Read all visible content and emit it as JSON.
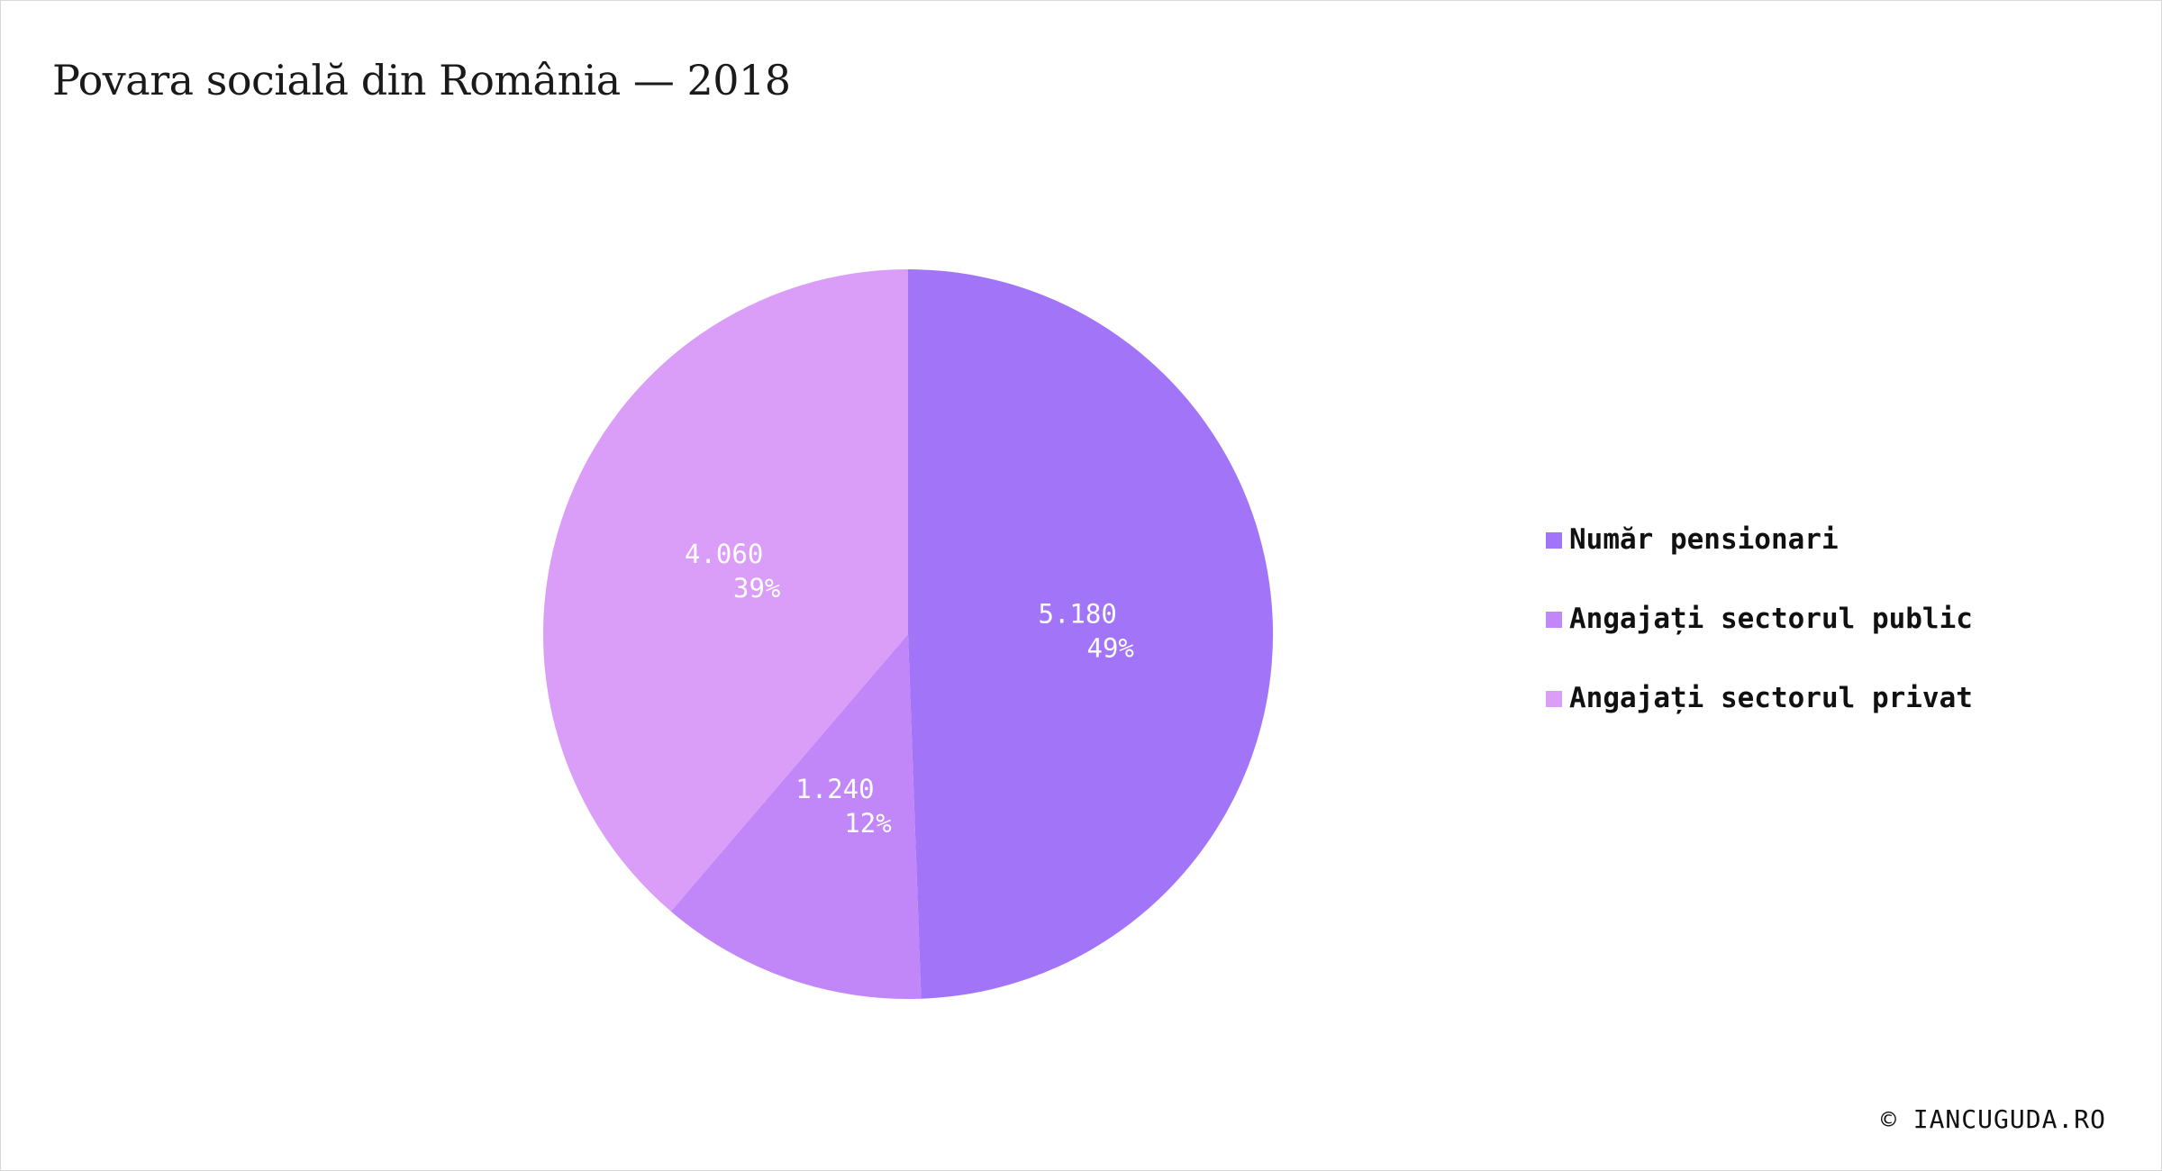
{
  "chart_data": {
    "type": "pie",
    "title": "Povara socială din România — 2018",
    "slices": [
      {
        "name": "Număr pensionari",
        "value": 5180,
        "value_label": "5.180",
        "percent_label": "49%",
        "color": "#a274f8"
      },
      {
        "name": "Angajați sectorul public",
        "value": 1240,
        "value_label": "1.240",
        "percent_label": "12%",
        "color": "#c187f8"
      },
      {
        "name": "Angajați sectorul privat",
        "value": 4060,
        "value_label": "4.060",
        "percent_label": "39%",
        "color": "#da9ef8"
      }
    ],
    "start_angle_deg": 0,
    "direction": "clockwise",
    "legend_position": "right"
  },
  "legend": {
    "items": [
      {
        "label": "Număr pensionari",
        "color": "#a274f8"
      },
      {
        "label": "Angajați sectorul public",
        "color": "#c187f8"
      },
      {
        "label": "Angajați sectorul privat",
        "color": "#da9ef8"
      }
    ]
  },
  "credit": "© IANCUGUDA.RO"
}
